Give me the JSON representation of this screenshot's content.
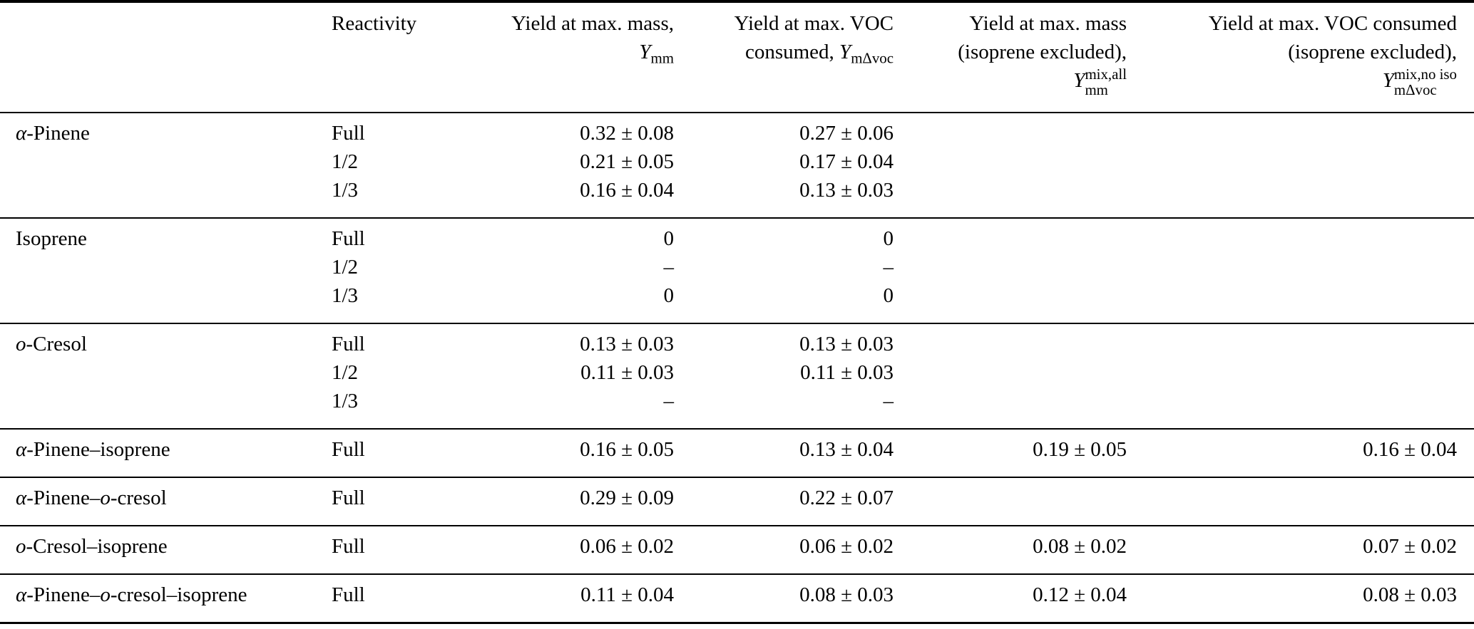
{
  "table": {
    "header": {
      "reactivity": "Reactivity",
      "yield_max_mass": {
        "line1": "Yield at max. mass,",
        "symbol": "Y",
        "sub": "mm"
      },
      "yield_max_voc": {
        "line1": "Yield at max. VOC",
        "line2_prefix": "consumed, ",
        "symbol": "Y",
        "sub": "mΔvoc"
      },
      "yield_max_mass_iso_excluded": {
        "line1": "Yield at max. mass",
        "line2": "(isoprene excluded),",
        "symbol": "Y",
        "sup": "mix,all",
        "sub": "mm"
      },
      "yield_max_voc_iso_excluded": {
        "line1": "Yield at max. VOC consumed",
        "line2": "(isoprene excluded),",
        "symbol": "Y",
        "sup": "mix,no iso",
        "sub": "mΔvoc"
      }
    },
    "groups": [
      {
        "name": {
          "seg1_italic": "α",
          "seg2": "-Pinene",
          "seg3_italic": "",
          "seg4": ""
        },
        "entries": [
          {
            "reactivity": "Full",
            "yield_mm": "0.32 ± 0.08",
            "yield_mdvoc": "0.27 ± 0.06",
            "yield_mm_mix": "",
            "yield_mdvoc_mix": ""
          },
          {
            "reactivity": "1/2",
            "yield_mm": "0.21 ± 0.05",
            "yield_mdvoc": "0.17 ± 0.04",
            "yield_mm_mix": "",
            "yield_mdvoc_mix": ""
          },
          {
            "reactivity": "1/3",
            "yield_mm": "0.16 ± 0.04",
            "yield_mdvoc": "0.13 ± 0.03",
            "yield_mm_mix": "",
            "yield_mdvoc_mix": ""
          }
        ]
      },
      {
        "name": {
          "seg1_italic": "",
          "seg2": "Isoprene",
          "seg3_italic": "",
          "seg4": ""
        },
        "entries": [
          {
            "reactivity": "Full",
            "yield_mm": "0",
            "yield_mdvoc": "0",
            "yield_mm_mix": "",
            "yield_mdvoc_mix": ""
          },
          {
            "reactivity": "1/2",
            "yield_mm": "–",
            "yield_mdvoc": "–",
            "yield_mm_mix": "",
            "yield_mdvoc_mix": ""
          },
          {
            "reactivity": "1/3",
            "yield_mm": "0",
            "yield_mdvoc": "0",
            "yield_mm_mix": "",
            "yield_mdvoc_mix": ""
          }
        ]
      },
      {
        "name": {
          "seg1_italic": "o",
          "seg2": "-Cresol",
          "seg3_italic": "",
          "seg4": ""
        },
        "entries": [
          {
            "reactivity": "Full",
            "yield_mm": "0.13 ± 0.03",
            "yield_mdvoc": "0.13 ± 0.03",
            "yield_mm_mix": "",
            "yield_mdvoc_mix": ""
          },
          {
            "reactivity": "1/2",
            "yield_mm": "0.11 ± 0.03",
            "yield_mdvoc": "0.11 ± 0.03",
            "yield_mm_mix": "",
            "yield_mdvoc_mix": ""
          },
          {
            "reactivity": "1/3",
            "yield_mm": "–",
            "yield_mdvoc": "–",
            "yield_mm_mix": "",
            "yield_mdvoc_mix": ""
          }
        ]
      },
      {
        "name": {
          "seg1_italic": "α",
          "seg2": "-Pinene–isoprene",
          "seg3_italic": "",
          "seg4": ""
        },
        "entries": [
          {
            "reactivity": "Full",
            "yield_mm": "0.16 ± 0.05",
            "yield_mdvoc": "0.13 ± 0.04",
            "yield_mm_mix": "0.19 ± 0.05",
            "yield_mdvoc_mix": "0.16 ± 0.04"
          }
        ]
      },
      {
        "name": {
          "seg1_italic": "α",
          "seg2": "-Pinene–",
          "seg3_italic": "o",
          "seg4": "-cresol"
        },
        "entries": [
          {
            "reactivity": "Full",
            "yield_mm": "0.29 ± 0.09",
            "yield_mdvoc": "0.22 ± 0.07",
            "yield_mm_mix": "",
            "yield_mdvoc_mix": ""
          }
        ]
      },
      {
        "name": {
          "seg1_italic": "o",
          "seg2": "-Cresol–isoprene",
          "seg3_italic": "",
          "seg4": ""
        },
        "entries": [
          {
            "reactivity": "Full",
            "yield_mm": "0.06 ± 0.02",
            "yield_mdvoc": "0.06 ± 0.02",
            "yield_mm_mix": "0.08 ± 0.02",
            "yield_mdvoc_mix": "0.07 ± 0.02"
          }
        ]
      },
      {
        "name": {
          "seg1_italic": "α",
          "seg2": "-Pinene–",
          "seg3_italic": "o",
          "seg4": "-cresol–isoprene"
        },
        "entries": [
          {
            "reactivity": "Full",
            "yield_mm": "0.11 ± 0.04",
            "yield_mdvoc": "0.08 ± 0.03",
            "yield_mm_mix": "0.12 ± 0.04",
            "yield_mdvoc_mix": "0.08 ± 0.03"
          }
        ]
      }
    ]
  }
}
